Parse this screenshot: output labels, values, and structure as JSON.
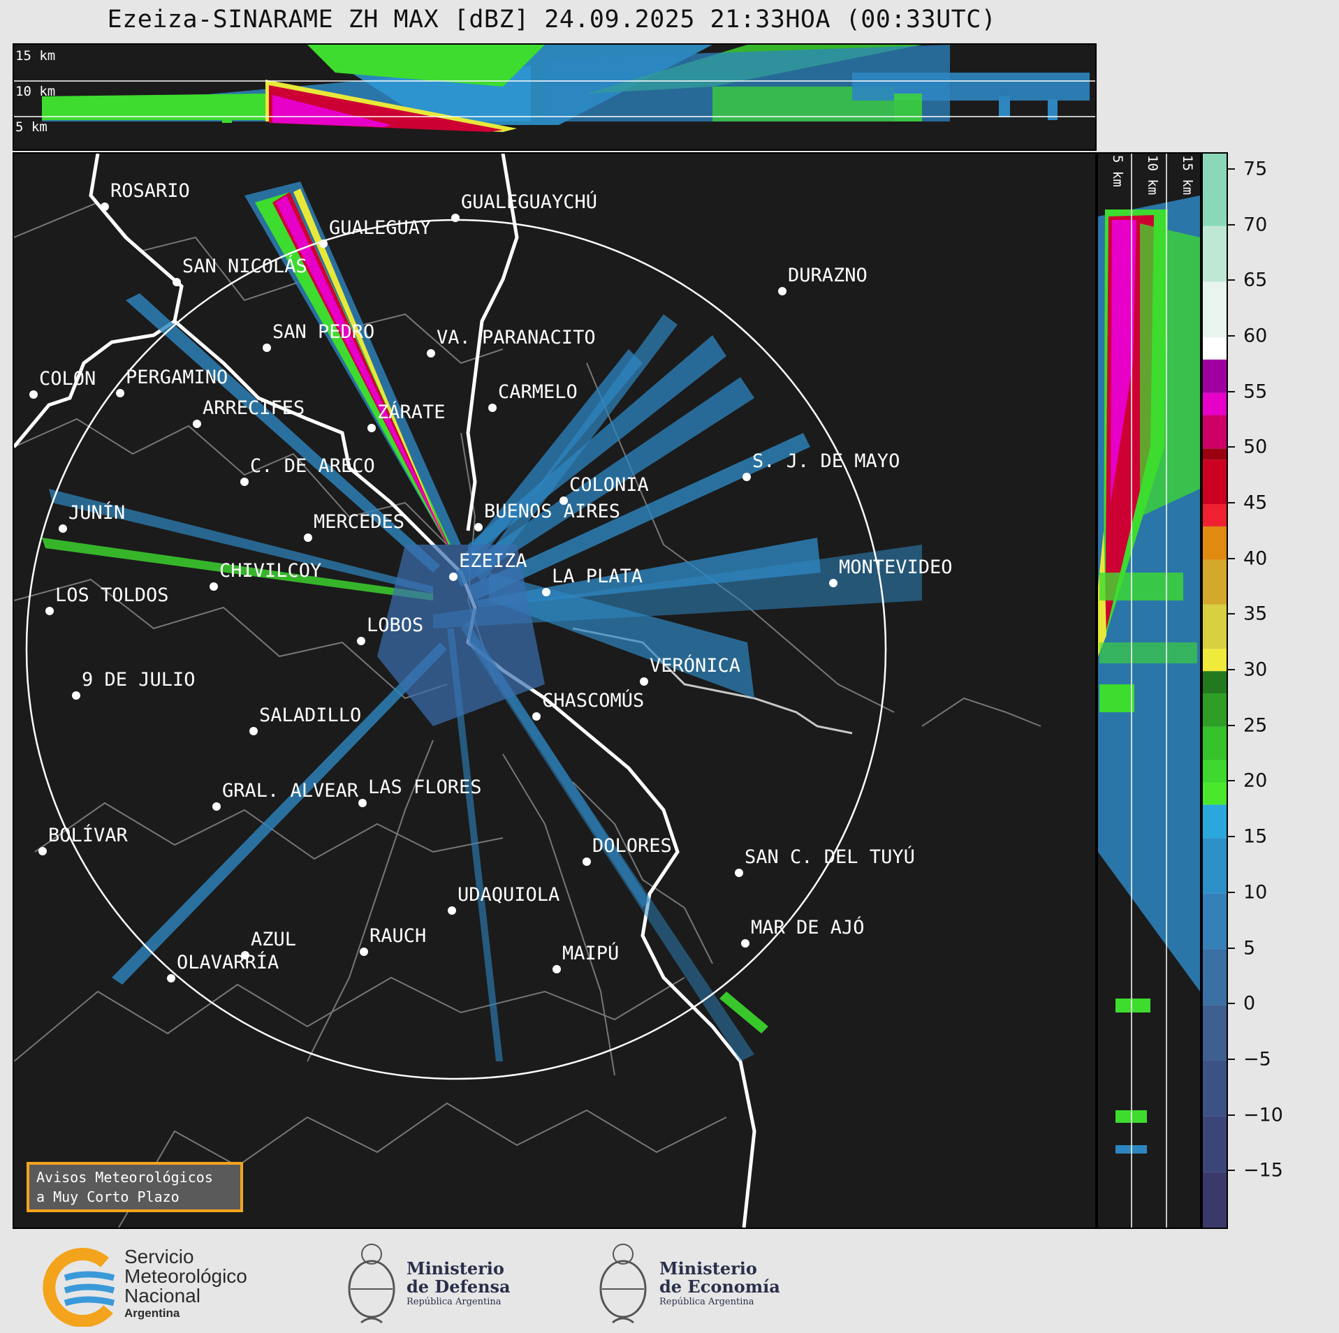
{
  "title": "Ezeiza-SINARAME ZH MAX [dBZ] 24.09.2025 21:33HOA (00:33UTC)",
  "top_panel": {
    "height_labels": [
      "15 km",
      "10 km",
      "5 km"
    ]
  },
  "side_panel": {
    "height_labels": [
      "5 km",
      "10 km",
      "15 km"
    ]
  },
  "colorbar": {
    "unit": "dBZ",
    "tick_labels": [
      "75",
      "70",
      "65",
      "60",
      "55",
      "50",
      "45",
      "40",
      "35",
      "30",
      "25",
      "20",
      "15",
      "10",
      "5",
      "0",
      "−5",
      "−10",
      "−15"
    ],
    "tick_values": [
      75,
      70,
      65,
      60,
      55,
      50,
      45,
      40,
      35,
      30,
      25,
      20,
      15,
      10,
      5,
      0,
      -5,
      -10,
      -15
    ],
    "range": [
      -20,
      76.5
    ]
  },
  "cities": [
    "ROSARIO",
    "GUALEGUAYCHÚ",
    "GUALEGUAY",
    "SAN NICOLÁS",
    "DURAZNO",
    "SAN PEDRO",
    "VA. PARANACITO",
    "COLON",
    "PERGAMINO",
    "CARMELO",
    "ARRECIFES",
    "ZÁRATE",
    "S. J. DE MAYO",
    "C. DE ARECO",
    "COLONIA",
    "JUNÍN",
    "BUENOS AIRES",
    "MERCEDES",
    "EZEIZA",
    "MONTEVIDEO",
    "CHIVILCOY",
    "LA PLATA",
    "LOS TOLDOS",
    "LOBOS",
    "VERÓNICA",
    "9 DE JULIO",
    "CHASCOMÚS",
    "SALADILLO",
    "GRAL. ALVEAR",
    "LAS FLORES",
    "BOLÍVAR",
    "DOLORES",
    "SAN C. DEL TUYÚ",
    "UDAQUIOLA",
    "MAR DE AJÓ",
    "AZUL",
    "RAUCH",
    "OLAVARRÍA",
    "MAIPÚ"
  ],
  "aviso": {
    "line1": "Avisos Meteorológicos",
    "line2": "a Muy Corto Plazo"
  },
  "footer": {
    "smn": {
      "line1": "Servicio",
      "line2": "Meteorológico",
      "line3": "Nacional",
      "line4": "Argentina"
    },
    "defensa": {
      "line1": "Ministerio",
      "line2": "de Defensa",
      "line3": "República Argentina"
    },
    "economia": {
      "line1": "Ministerio",
      "line2": "de Economía",
      "line3": "República Argentina"
    }
  },
  "colors": {
    "background": "#1b1b1b",
    "page": "#e6e6e6",
    "range_ring": "#ffffff",
    "accent_orange": "#f3a41c",
    "weak_echo": "#2e86c1",
    "moderate_echo": "#3ddc2f",
    "strong_echo": "#cc0033",
    "intense_echo": "#e600c8"
  }
}
